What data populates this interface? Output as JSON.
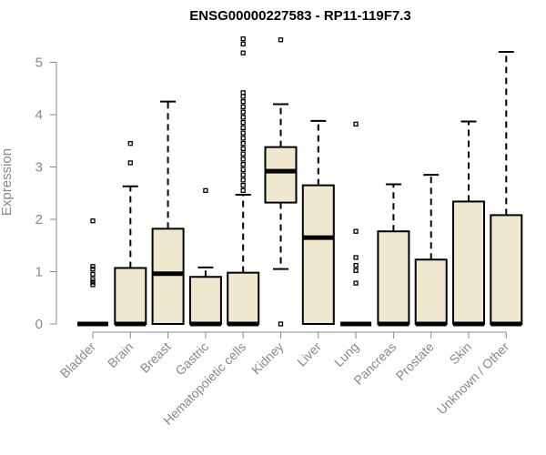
{
  "chart_data": {
    "type": "boxplot",
    "title": "ENSG00000227583 - RP11-119F7.3",
    "ylabel": "Expression",
    "xlabel": "",
    "ylim": [
      0,
      5.5
    ],
    "yticks": [
      0,
      1,
      2,
      3,
      4,
      5
    ],
    "box_fill": "#EFE8CF",
    "outline_color": "#000000",
    "categories": [
      "Bladder",
      "Brain",
      "Breast",
      "Gastric",
      "Hematopoietic cells",
      "Kidney",
      "Liver",
      "Lung",
      "Pancreas",
      "Prostate",
      "Skin",
      "Unknown / Other"
    ],
    "boxes": [
      {
        "q1": 0,
        "median": 0,
        "q3": 0,
        "whisker_low": 0,
        "whisker_high": 0,
        "outliers": [
          0.75,
          0.8,
          0.85,
          0.95,
          1.05,
          1.1,
          1.97
        ]
      },
      {
        "q1": 0,
        "median": 0,
        "q3": 1.07,
        "whisker_low": 0,
        "whisker_high": 2.63,
        "outliers": [
          3.08,
          3.45
        ]
      },
      {
        "q1": 0,
        "median": 0.96,
        "q3": 1.82,
        "whisker_low": 0,
        "whisker_high": 4.25,
        "outliers": []
      },
      {
        "q1": 0,
        "median": 0,
        "q3": 0.9,
        "whisker_low": 0,
        "whisker_high": 1.08,
        "outliers": [
          2.55
        ]
      },
      {
        "q1": 0,
        "median": 0,
        "q3": 0.98,
        "whisker_low": 0,
        "whisker_high": 2.47,
        "outliers": [
          2.55,
          2.65,
          2.75,
          2.85,
          2.95,
          3.05,
          3.15,
          3.25,
          3.35,
          3.45,
          3.55,
          3.65,
          3.75,
          3.85,
          3.95,
          4.05,
          4.15,
          4.25,
          4.35,
          4.42,
          5.18,
          5.35,
          5.45
        ]
      },
      {
        "q1": 2.32,
        "median": 2.92,
        "q3": 3.38,
        "whisker_low": 1.05,
        "whisker_high": 4.2,
        "outliers": [
          0,
          5.43
        ]
      },
      {
        "q1": 0,
        "median": 1.65,
        "q3": 2.65,
        "whisker_low": 0,
        "whisker_high": 3.88,
        "outliers": []
      },
      {
        "q1": 0,
        "median": 0,
        "q3": 0,
        "whisker_low": 0,
        "whisker_high": 0,
        "outliers": [
          0.78,
          1.02,
          1.12,
          1.27,
          1.77,
          3.82
        ]
      },
      {
        "q1": 0,
        "median": 0,
        "q3": 1.77,
        "whisker_low": 0,
        "whisker_high": 2.67,
        "outliers": []
      },
      {
        "q1": 0,
        "median": 0,
        "q3": 1.23,
        "whisker_low": 0,
        "whisker_high": 2.85,
        "outliers": []
      },
      {
        "q1": 0,
        "median": 0,
        "q3": 2.34,
        "whisker_low": 0,
        "whisker_high": 3.87,
        "outliers": []
      },
      {
        "q1": 0,
        "median": 0,
        "q3": 2.08,
        "whisker_low": 0,
        "whisker_high": 5.2,
        "outliers": []
      }
    ]
  }
}
